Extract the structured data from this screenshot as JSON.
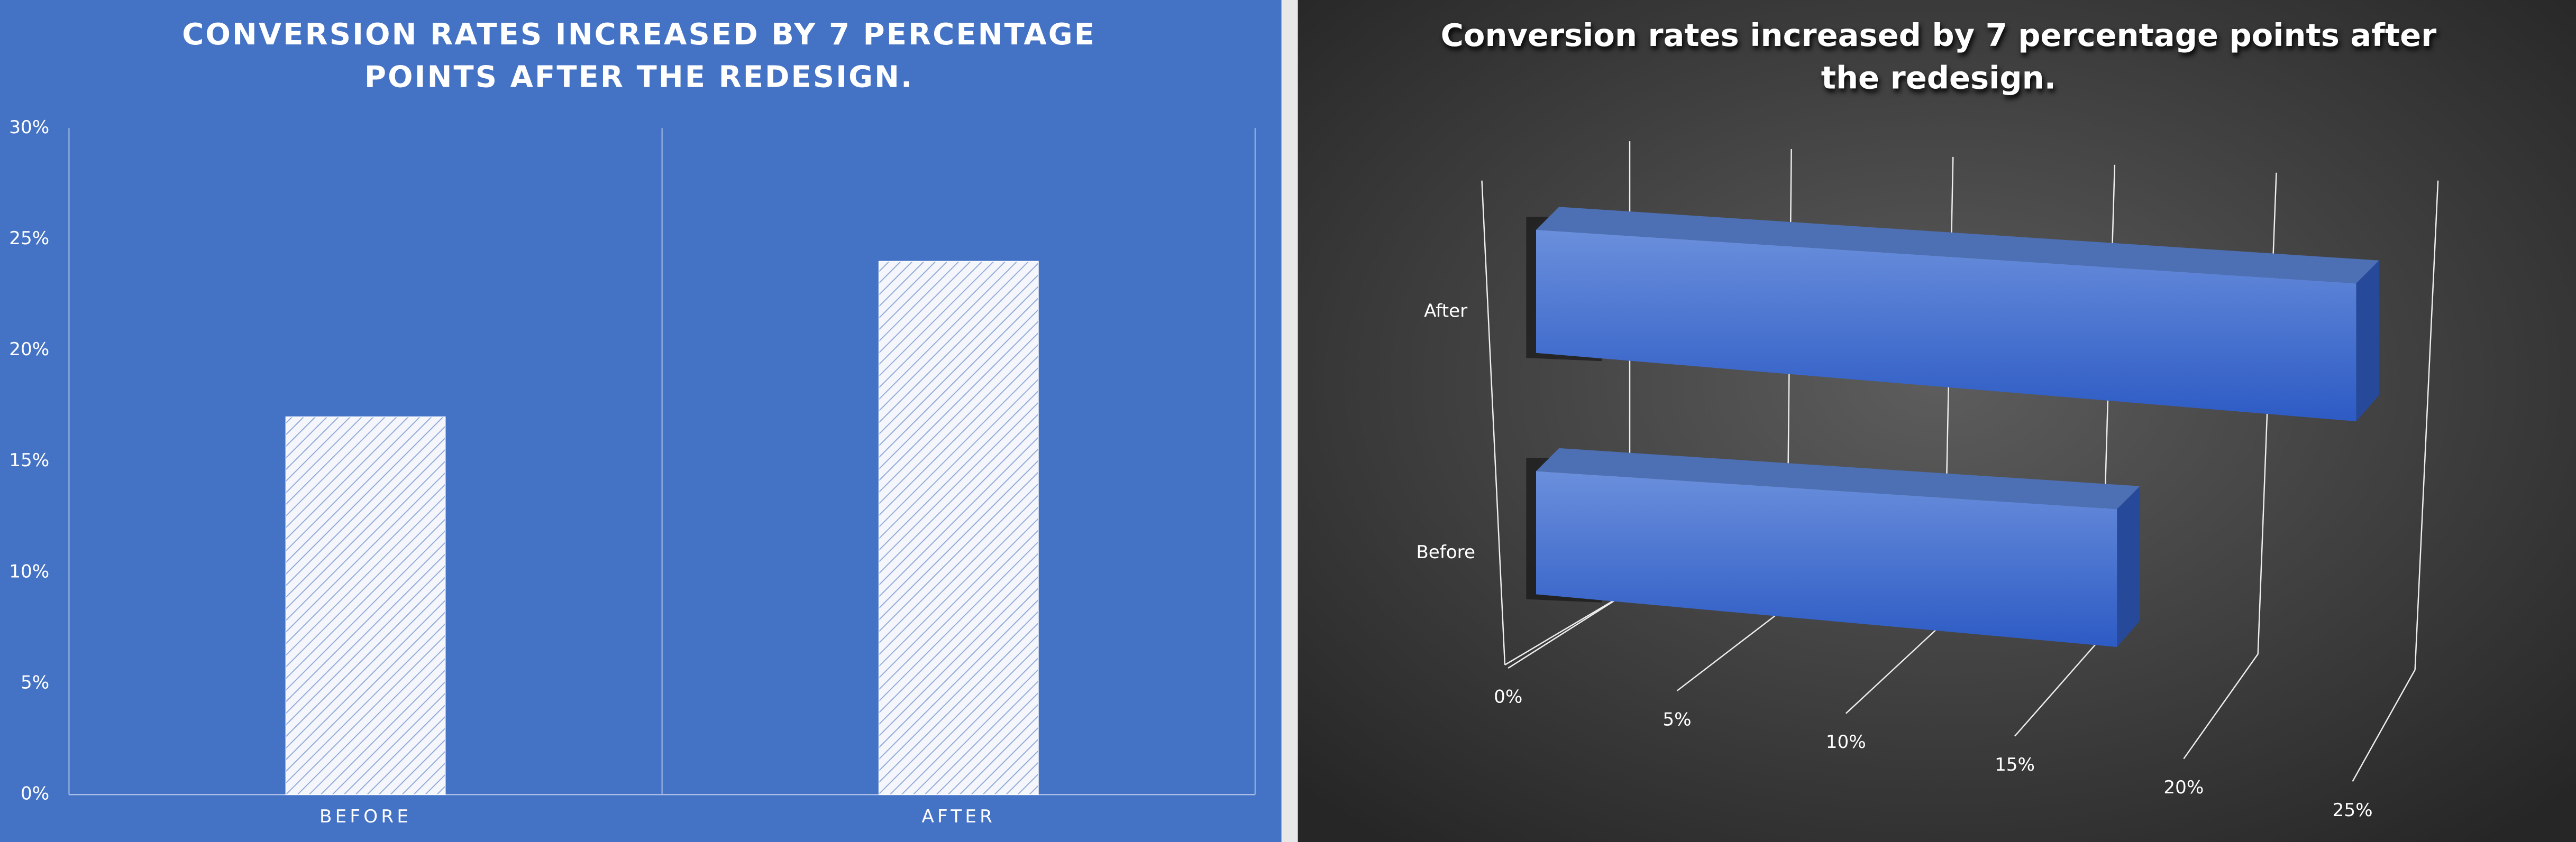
{
  "chart_data": [
    {
      "type": "bar",
      "title": "CONVERSION RATES INCREASED BY 7 PERCENTAGE POINTS AFTER THE REDESIGN.",
      "categories": [
        "BEFORE",
        "AFTER"
      ],
      "values": [
        17,
        24
      ],
      "color": "#ffffff",
      "ylim": [
        0,
        30
      ],
      "yticks": [
        {
          "value": 0,
          "label": "0%"
        },
        {
          "value": 5,
          "label": "5%"
        },
        {
          "value": 10,
          "label": "10%"
        },
        {
          "value": 15,
          "label": "15%"
        },
        {
          "value": 20,
          "label": "20%"
        },
        {
          "value": 25,
          "label": "25%"
        },
        {
          "value": 30,
          "label": "30%"
        }
      ],
      "grid": true
    },
    {
      "type": "bar3d",
      "title": "Conversion rates increased by 7 percentage points after the redesign.",
      "categories": [
        "Before",
        "After"
      ],
      "values": [
        17,
        24
      ],
      "color": "#3a66c8",
      "xlim": [
        0,
        25
      ],
      "xticks": [
        {
          "value": 0,
          "label": "0%"
        },
        {
          "value": 5,
          "label": "5%"
        },
        {
          "value": 10,
          "label": "10%"
        },
        {
          "value": 15,
          "label": "15%"
        },
        {
          "value": 20,
          "label": "20%"
        },
        {
          "value": 25,
          "label": "25%"
        }
      ],
      "grid": true
    }
  ]
}
